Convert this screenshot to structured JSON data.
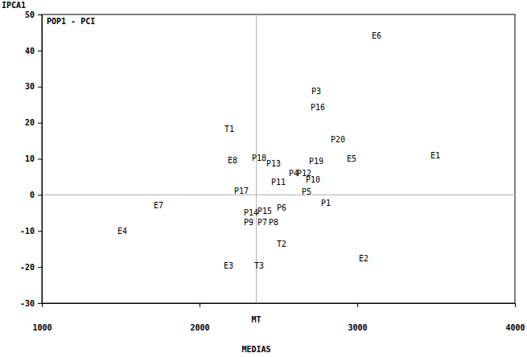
{
  "chart_data": {
    "type": "scatter",
    "title": "POP1 - PCI",
    "x_label": "MEDIAS",
    "y_label": "IPCA1",
    "marker": "text",
    "grid": false,
    "color": "#000000",
    "labels": [
      "E6",
      "P3",
      "P16",
      "T1",
      "P20",
      "E1",
      "E5",
      "E8",
      "P18",
      "P13",
      "P19",
      "P4",
      "P12",
      "P11",
      "P10",
      "P5",
      "P17",
      "P1",
      "E7",
      "P6",
      "P14",
      "P15",
      "P9",
      "P7",
      "P8",
      "E4",
      "T2",
      "E2",
      "E3",
      "T3"
    ],
    "x": [
      3122,
      2740,
      2750,
      2189,
      2878,
      3495,
      2964,
      2209,
      2378,
      2469,
      2740,
      2597,
      2663,
      2500,
      2719,
      2679,
      2265,
      2801,
      1740,
      2520,
      2327,
      2413,
      2311,
      2398,
      2469,
      1510,
      2520,
      3041,
      2184,
      2378
    ],
    "values": [
      44.0,
      28.8,
      24.3,
      18.3,
      15.4,
      10.9,
      10.0,
      9.6,
      10.3,
      8.7,
      9.4,
      6.0,
      6.0,
      3.6,
      4.2,
      0.9,
      1.1,
      -2.2,
      -2.9,
      -3.6,
      -4.9,
      -4.5,
      -7.6,
      -7.6,
      -7.6,
      -10.0,
      -13.6,
      -17.6,
      -19.6,
      -19.6
    ],
    "xlim": [
      1000,
      4000
    ],
    "xticks": [
      1000,
      2000,
      3000,
      4000
    ],
    "ylim": [
      -30,
      50
    ],
    "yticks": [
      -30,
      -20,
      -10,
      0,
      10,
      20,
      30,
      40,
      50
    ],
    "vline": {
      "x": 2360,
      "label": "MT"
    },
    "hline": {
      "y": 0
    }
  }
}
